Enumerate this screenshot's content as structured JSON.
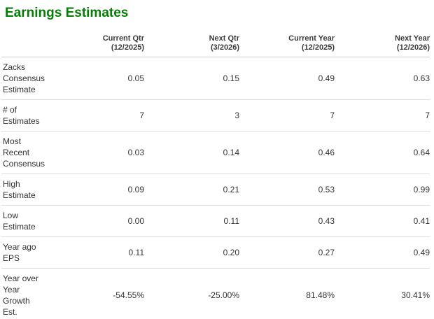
{
  "title": "Earnings Estimates",
  "colors": {
    "title_green": "#077d07",
    "body_text": "#333333",
    "separator": "#dddddd",
    "header_separator": "#cccccc"
  },
  "table": {
    "columns": [
      {
        "period": "Current Qtr",
        "date": "(12/2025)"
      },
      {
        "period": "Next Qtr",
        "date": "(3/2026)"
      },
      {
        "period": "Current Year",
        "date": "(12/2025)"
      },
      {
        "period": "Next Year",
        "date": "(12/2026)"
      }
    ],
    "rows": [
      {
        "label": "Zacks\nConsensus\nEstimate",
        "values": [
          "0.05",
          "0.15",
          "0.49",
          "0.63"
        ]
      },
      {
        "label": "# of\nEstimates",
        "values": [
          "7",
          "3",
          "7",
          "7"
        ]
      },
      {
        "label": "Most\nRecent\nConsensus",
        "values": [
          "0.03",
          "0.14",
          "0.46",
          "0.64"
        ]
      },
      {
        "label": "High\nEstimate",
        "values": [
          "0.09",
          "0.21",
          "0.53",
          "0.99"
        ]
      },
      {
        "label": "Low\nEstimate",
        "values": [
          "0.00",
          "0.11",
          "0.43",
          "0.41"
        ]
      },
      {
        "label": "Year ago\nEPS",
        "values": [
          "0.11",
          "0.20",
          "0.27",
          "0.49"
        ]
      },
      {
        "label": "Year over\nYear\nGrowth\nEst.",
        "values": [
          "-54.55%",
          "-25.00%",
          "81.48%",
          "30.41%"
        ]
      }
    ]
  }
}
